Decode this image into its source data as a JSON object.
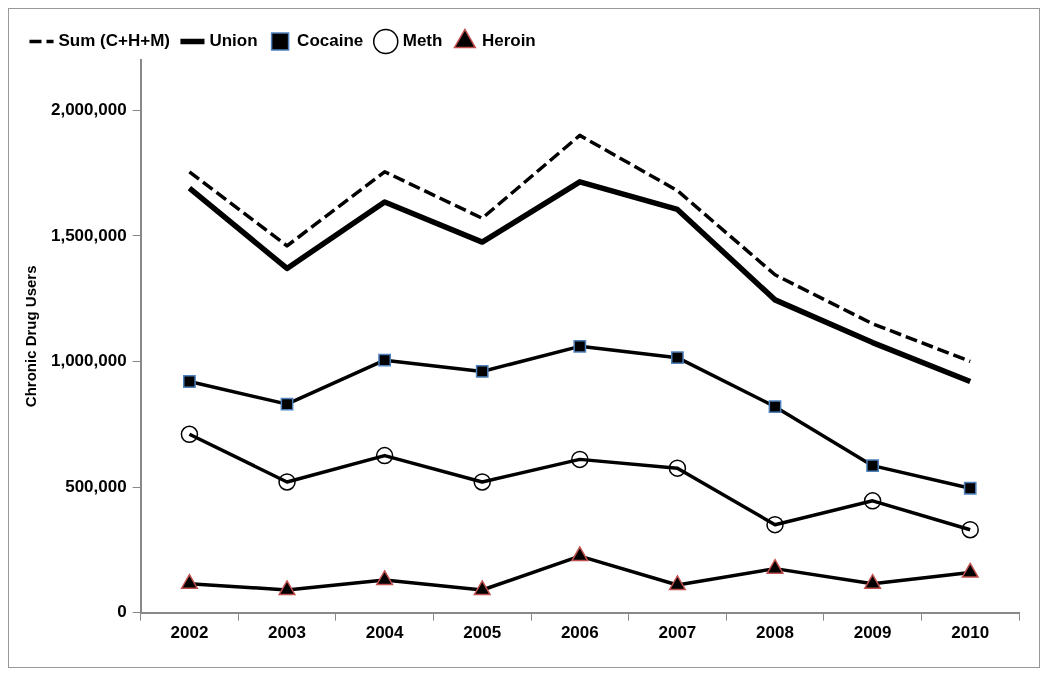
{
  "chart_data": {
    "type": "line",
    "ylabel": "Chronic Drug Users",
    "categories": [
      "2002",
      "2003",
      "2004",
      "2005",
      "2006",
      "2007",
      "2008",
      "2009",
      "2010"
    ],
    "ylim": [
      0,
      2200000
    ],
    "yticks": [
      0,
      {
        "value": 500000,
        "label": "500,000"
      },
      {
        "value": 1000000,
        "label": "1,000,000"
      },
      {
        "value": 1500000,
        "label": "1,500,000"
      },
      {
        "value": 2000000,
        "label": "2,000,000"
      }
    ],
    "grid": false,
    "legend": "top",
    "series": [
      {
        "name": "Sum (C+H+M)",
        "color": "#000000",
        "line_style": "dashed",
        "marker": "none",
        "values": [
          1755000,
          1460000,
          1755000,
          1570000,
          1900000,
          1680000,
          1345000,
          1150000,
          1000000
        ]
      },
      {
        "name": "Union",
        "color": "#000000",
        "line_style": "solid",
        "marker": "none",
        "values": [
          1690000,
          1370000,
          1635000,
          1475000,
          1715000,
          1605000,
          1245000,
          1075000,
          920000
        ]
      },
      {
        "name": "Cocaine",
        "color": "#000000",
        "line_style": "solid",
        "marker": "square",
        "values": [
          920000,
          830000,
          1005000,
          960000,
          1060000,
          1015000,
          820000,
          585000,
          495000
        ]
      },
      {
        "name": "Meth",
        "color": "#000000",
        "line_style": "solid",
        "marker": "circle",
        "values": [
          710000,
          520000,
          625000,
          520000,
          610000,
          575000,
          350000,
          445000,
          330000
        ]
      },
      {
        "name": "Heroin",
        "color": "#000000",
        "line_style": "solid",
        "marker": "triangle",
        "values": [
          115000,
          90000,
          130000,
          90000,
          225000,
          110000,
          175000,
          115000,
          160000
        ]
      }
    ]
  }
}
